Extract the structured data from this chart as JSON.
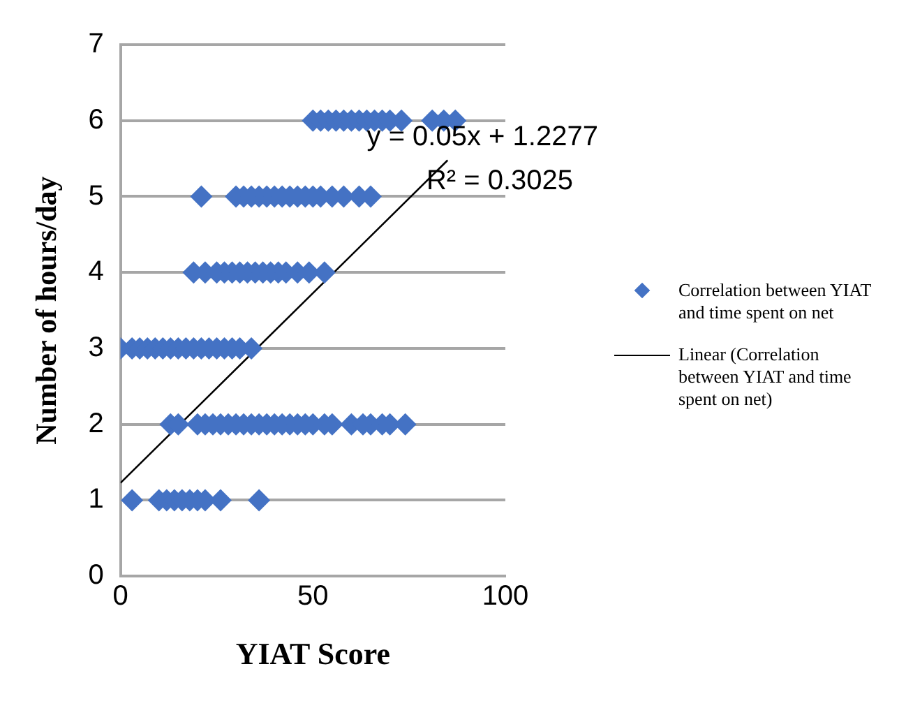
{
  "chart_data": {
    "type": "scatter",
    "xlabel": "YIAT Score",
    "ylabel": "Number of hours/day",
    "xlim": [
      0,
      100
    ],
    "xticks": [
      0,
      50,
      100
    ],
    "ylim": [
      0,
      7
    ],
    "yticks": [
      0,
      1,
      2,
      3,
      4,
      5,
      6,
      7
    ],
    "grid": "y",
    "legend": "right",
    "marker": "diamond",
    "series": [
      {
        "name": "Correlation between YIAT and time spent on net",
        "color": "#4472c4",
        "x": [
          50,
          52,
          54,
          56,
          58,
          60,
          62,
          64,
          66,
          68,
          70,
          73,
          81,
          84,
          87,
          21,
          30,
          32,
          34,
          36,
          38,
          40,
          42,
          44,
          46,
          48,
          50,
          52,
          55,
          58,
          62,
          65,
          19,
          22,
          25,
          27,
          29,
          31,
          33,
          35,
          37,
          39,
          41,
          43,
          46,
          49,
          53,
          0,
          3,
          5,
          7,
          9,
          11,
          13,
          15,
          17,
          19,
          21,
          23,
          25,
          27,
          29,
          31,
          34,
          13,
          15,
          20,
          22,
          24,
          26,
          28,
          30,
          32,
          34,
          36,
          38,
          40,
          42,
          44,
          46,
          48,
          50,
          53,
          55,
          60,
          63,
          65,
          68,
          70,
          74,
          3,
          10,
          12,
          14,
          16,
          18,
          20,
          22,
          26,
          36
        ],
        "values": [
          6,
          6,
          6,
          6,
          6,
          6,
          6,
          6,
          6,
          6,
          6,
          6,
          6,
          6,
          6,
          5,
          5,
          5,
          5,
          5,
          5,
          5,
          5,
          5,
          5,
          5,
          5,
          5,
          5,
          5,
          5,
          5,
          4,
          4,
          4,
          4,
          4,
          4,
          4,
          4,
          4,
          4,
          4,
          4,
          4,
          4,
          4,
          3,
          3,
          3,
          3,
          3,
          3,
          3,
          3,
          3,
          3,
          3,
          3,
          3,
          3,
          3,
          3,
          3,
          2,
          2,
          2,
          2,
          2,
          2,
          2,
          2,
          2,
          2,
          2,
          2,
          2,
          2,
          2,
          2,
          2,
          2,
          2,
          2,
          2,
          2,
          2,
          2,
          2,
          2,
          1,
          1,
          1,
          1,
          1,
          1,
          1,
          1,
          1,
          1
        ]
      },
      {
        "type": "line",
        "name": "Linear (Correlation between YIAT and time spent on net)",
        "color": "#000000",
        "marker": "none",
        "x": [
          0,
          85
        ],
        "values": [
          1.2277,
          5.4777
        ]
      }
    ],
    "annotations": [
      {
        "text": "y = 0.05x + 1.2277",
        "x": 64,
        "y": 5.78
      },
      {
        "text": "R² = 0.3025",
        "x": 79.5,
        "y": 5.2
      }
    ]
  }
}
